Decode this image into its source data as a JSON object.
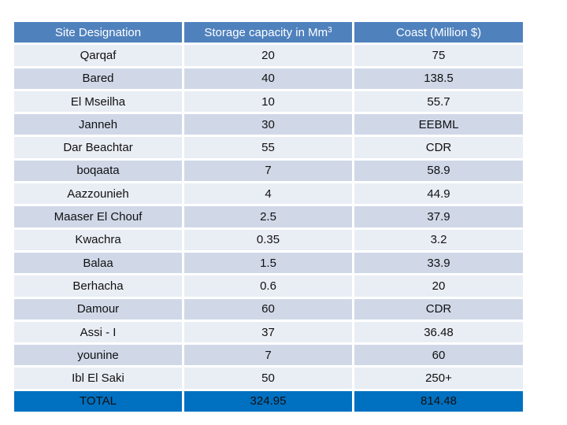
{
  "table": {
    "headers": {
      "site": "Site Designation",
      "storage_prefix": "Storage capacity in Mm",
      "storage_sup": "3",
      "cost": "Coast (Million $)"
    },
    "rows": [
      {
        "site": "Qarqaf",
        "storage": "20",
        "cost": "75"
      },
      {
        "site": "Bared",
        "storage": "40",
        "cost": "138.5"
      },
      {
        "site": "El Mseilha",
        "storage": "10",
        "cost": "55.7"
      },
      {
        "site": "Janneh",
        "storage": "30",
        "cost": "EEBML"
      },
      {
        "site": "Dar Beachtar",
        "storage": "55",
        "cost": "CDR"
      },
      {
        "site": "boqaata",
        "storage": "7",
        "cost": "58.9"
      },
      {
        "site": "Aazzounieh",
        "storage": "4",
        "cost": "44.9"
      },
      {
        "site": "Maaser El  Chouf",
        "storage": "2.5",
        "cost": "37.9"
      },
      {
        "site": "Kwachra",
        "storage": "0.35",
        "cost": "3.2"
      },
      {
        "site": "Balaa",
        "storage": "1.5",
        "cost": "33.9"
      },
      {
        "site": "Berhacha",
        "storage": "0.6",
        "cost": "20"
      },
      {
        "site": "Damour",
        "storage": "60",
        "cost": "CDR"
      },
      {
        "site": "Assi - I",
        "storage": "37",
        "cost": "36.48"
      },
      {
        "site": "younine",
        "storage": "7",
        "cost": "60"
      },
      {
        "site": "Ibl El Saki",
        "storage": "50",
        "cost": "250+"
      }
    ],
    "total": {
      "site": "TOTAL",
      "storage": "324.95",
      "cost": "814.48"
    }
  }
}
